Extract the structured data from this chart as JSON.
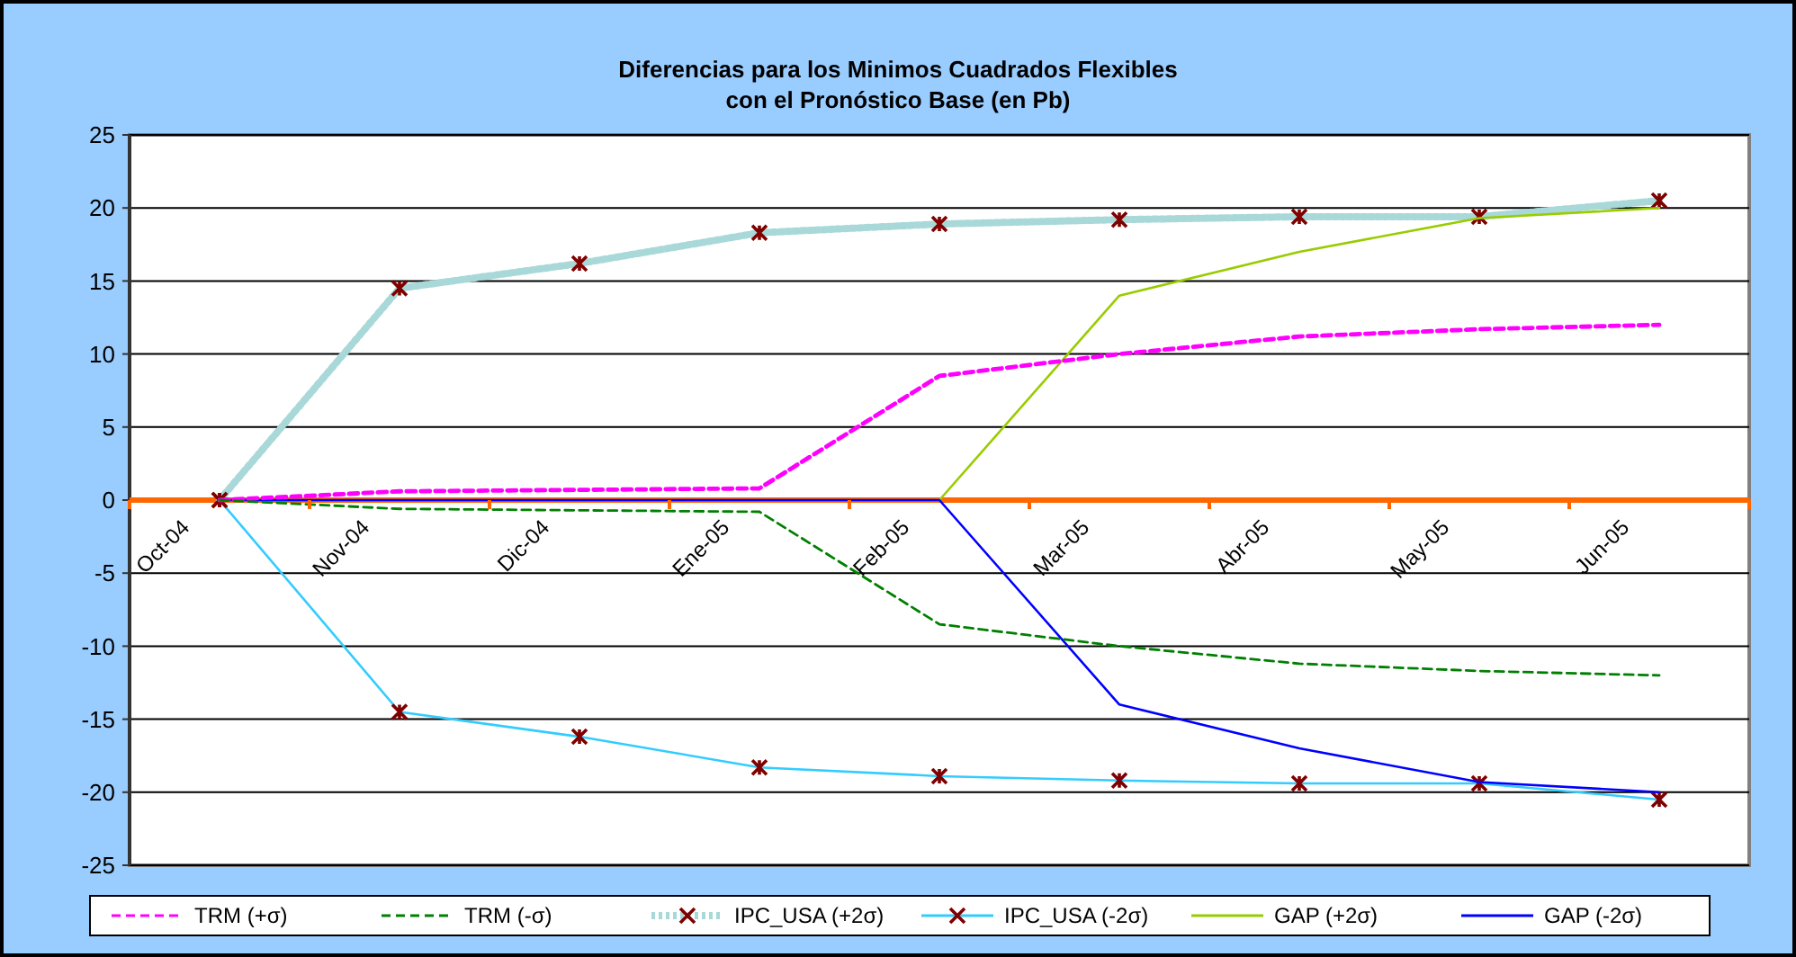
{
  "chart_data": {
    "type": "line",
    "title": "Diferencias para los Minimos Cuadrados Flexibles\ncon el Pronóstico Base (en Pb)",
    "categories": [
      "Oct-04",
      "Nov-04",
      "Dic-04",
      "Ene-05",
      "Feb-05",
      "Mar-05",
      "Abr-05",
      "May-05",
      "Jun-05"
    ],
    "series": [
      {
        "name": "TRM (+σ)",
        "color": "#ff00ff",
        "line_style": "dashed",
        "marker": "none",
        "values": [
          0,
          0.6,
          0.7,
          0.8,
          8.5,
          10,
          11.2,
          11.7,
          12
        ]
      },
      {
        "name": "TRM (-σ)",
        "color": "#008000",
        "line_style": "dashed",
        "marker": "none",
        "values": [
          0,
          -0.6,
          -0.7,
          -0.8,
          -8.5,
          -10,
          -11.2,
          -11.7,
          -12
        ]
      },
      {
        "name": "IPC_USA  (+2σ)",
        "color": "#a8d8d8",
        "line_style": "dotted",
        "marker": "cross",
        "values": [
          0,
          14.5,
          16.2,
          18.3,
          18.9,
          19.2,
          19.4,
          19.4,
          20.5
        ]
      },
      {
        "name": "IPC_USA  (-2σ)",
        "color": "#33ccff",
        "line_style": "solid",
        "marker": "cross",
        "values": [
          0,
          -14.5,
          -16.2,
          -18.3,
          -18.9,
          -19.2,
          -19.4,
          -19.4,
          -20.5
        ]
      },
      {
        "name": "GAP (+2σ)",
        "color": "#99cc00",
        "line_style": "solid",
        "marker": "none",
        "values": [
          null,
          null,
          null,
          null,
          0,
          14,
          17,
          19.3,
          20
        ]
      },
      {
        "name": "GAP (-2σ)",
        "color": "#0000ff",
        "line_style": "solid",
        "marker": "none",
        "values": [
          0,
          0,
          0,
          0,
          0,
          -14,
          -17,
          -19.3,
          -20
        ]
      }
    ],
    "ylim": [
      -25,
      25
    ],
    "yticks": [
      -25,
      -20,
      -15,
      -10,
      -5,
      0,
      5,
      10,
      15,
      20,
      25
    ],
    "grid": "y",
    "legend": "bottom"
  }
}
